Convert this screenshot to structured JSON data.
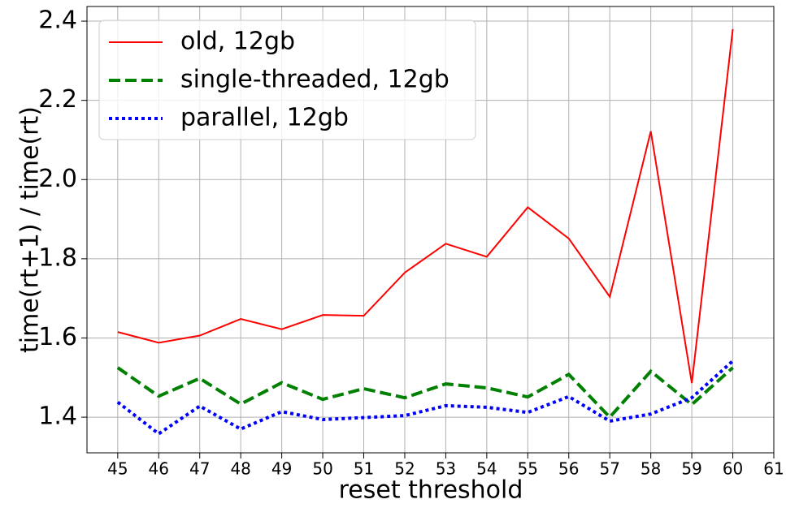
{
  "chart_data": {
    "type": "line",
    "xlabel": "reset threshold",
    "ylabel": "time(rt+1) / time(rt)",
    "x": [
      45,
      46,
      47,
      48,
      49,
      50,
      51,
      52,
      53,
      54,
      55,
      56,
      57,
      58,
      59,
      60
    ],
    "series": [
      {
        "name": "old, 12gb",
        "color": "#ff0000",
        "dash": "solid",
        "values": [
          1.615,
          1.588,
          1.606,
          1.648,
          1.622,
          1.658,
          1.656,
          1.765,
          1.838,
          1.805,
          1.93,
          1.851,
          1.704,
          2.122,
          1.486,
          2.38
        ]
      },
      {
        "name": "single-threaded, 12gb",
        "color": "#008000",
        "dash": "dashed",
        "values": [
          1.525,
          1.453,
          1.498,
          1.433,
          1.487,
          1.445,
          1.472,
          1.449,
          1.484,
          1.474,
          1.451,
          1.508,
          1.4,
          1.516,
          1.432,
          1.525
        ]
      },
      {
        "name": "parallel, 12gb",
        "color": "#0000ff",
        "dash": "dotted",
        "values": [
          1.438,
          1.358,
          1.428,
          1.37,
          1.414,
          1.394,
          1.399,
          1.404,
          1.429,
          1.425,
          1.412,
          1.452,
          1.39,
          1.408,
          1.449,
          1.542
        ]
      }
    ],
    "xlim": [
      44.25,
      61
    ],
    "xticks": [
      45,
      46,
      47,
      48,
      49,
      50,
      51,
      52,
      53,
      54,
      55,
      56,
      57,
      58,
      59,
      60,
      61
    ],
    "ylim": [
      1.31,
      2.437
    ],
    "yticks": [
      1.4,
      1.6,
      1.8,
      {
        "value": 2,
        "label": "2.0"
      },
      2.2,
      2.4
    ],
    "grid": true,
    "legend": "upper-left"
  }
}
